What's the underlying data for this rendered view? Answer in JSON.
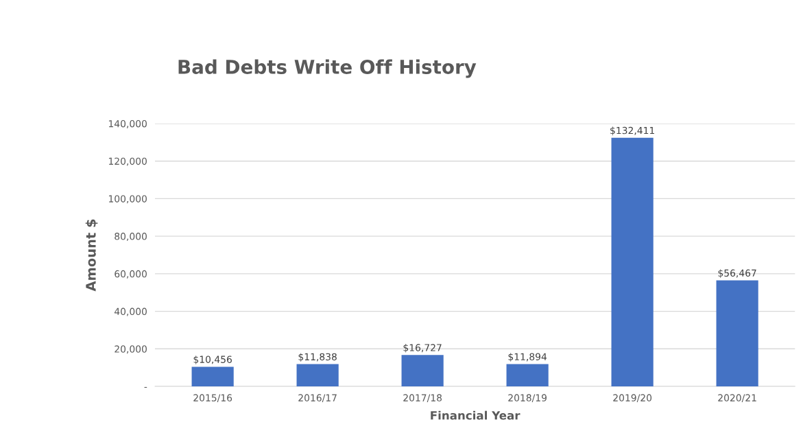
{
  "chart_data": {
    "type": "bar",
    "title": "Bad Debts Write Off History",
    "xlabel": "Financial Year",
    "ylabel": "Amount $",
    "categories": [
      "2015/16",
      "2016/17",
      "2017/18",
      "2018/19",
      "2019/20",
      "2020/21"
    ],
    "values": [
      10456,
      11838,
      16727,
      11894,
      132411,
      56467
    ],
    "value_labels": [
      "$10,456",
      "$11,838",
      "$16,727",
      "$11,894",
      "$132,411",
      "$56,467"
    ],
    "color": "#4472c4",
    "ylim": [
      0,
      140000
    ],
    "yticks": [
      {
        "value": 0,
        "label": "-"
      },
      {
        "value": 20000,
        "label": "20,000"
      },
      {
        "value": 40000,
        "label": "40,000"
      },
      {
        "value": 60000,
        "label": "60,000"
      },
      {
        "value": 80000,
        "label": "80,000"
      },
      {
        "value": 100000,
        "label": "100,000"
      },
      {
        "value": 120000,
        "label": "120,000"
      },
      {
        "value": 140000,
        "label": "140,000"
      }
    ],
    "grid": "y",
    "legend": false
  }
}
